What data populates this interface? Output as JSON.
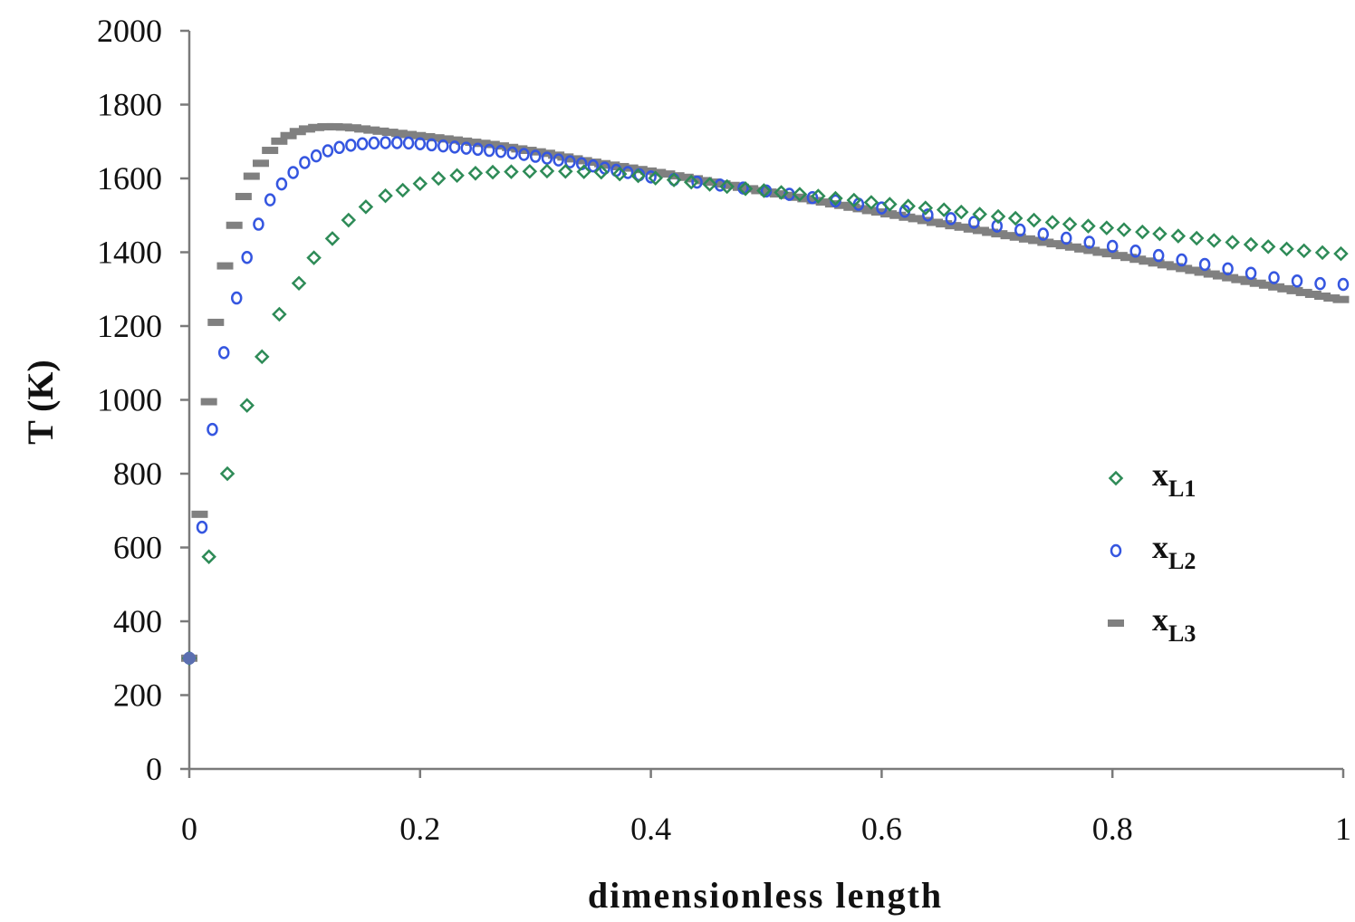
{
  "chart_data": {
    "type": "scatter",
    "xlabel": "dimensionless length",
    "ylabel": "T (K)",
    "xlim": [
      0,
      1
    ],
    "ylim": [
      0,
      2000
    ],
    "x_ticks": [
      "0",
      "0.2",
      "0.4",
      "0.6",
      "0.8",
      "1"
    ],
    "y_ticks": [
      "0",
      "200",
      "400",
      "600",
      "800",
      "1000",
      "1200",
      "1400",
      "1600",
      "1800",
      "2000"
    ],
    "grid": false,
    "legend_position": "right",
    "series": [
      {
        "name": "x",
        "subscript": "L1",
        "marker": "diamond",
        "color": "#2e8b57",
        "points": [
          [
            0,
            300
          ],
          [
            0.017,
            575
          ],
          [
            0.033,
            800
          ],
          [
            0.05,
            985
          ],
          [
            0.063,
            1117
          ],
          [
            0.078,
            1232
          ],
          [
            0.095,
            1316
          ],
          [
            0.108,
            1385
          ],
          [
            0.124,
            1437
          ],
          [
            0.138,
            1487
          ],
          [
            0.153,
            1523
          ],
          [
            0.17,
            1553
          ],
          [
            0.185,
            1568
          ],
          [
            0.2,
            1586
          ],
          [
            0.216,
            1600
          ],
          [
            0.232,
            1608
          ],
          [
            0.248,
            1614
          ],
          [
            0.263,
            1617
          ],
          [
            0.279,
            1618
          ],
          [
            0.295,
            1619
          ],
          [
            0.31,
            1620
          ],
          [
            0.326,
            1619
          ],
          [
            0.342,
            1618
          ],
          [
            0.357,
            1617
          ],
          [
            0.373,
            1612
          ],
          [
            0.389,
            1607
          ],
          [
            0.404,
            1601
          ],
          [
            0.42,
            1596
          ],
          [
            0.435,
            1590
          ],
          [
            0.451,
            1584
          ],
          [
            0.466,
            1578
          ],
          [
            0.482,
            1572
          ],
          [
            0.498,
            1567
          ],
          [
            0.513,
            1562
          ],
          [
            0.529,
            1557
          ],
          [
            0.545,
            1552
          ],
          [
            0.56,
            1546
          ],
          [
            0.576,
            1541
          ],
          [
            0.591,
            1535
          ],
          [
            0.607,
            1530
          ],
          [
            0.623,
            1525
          ],
          [
            0.638,
            1520
          ],
          [
            0.654,
            1515
          ],
          [
            0.669,
            1509
          ],
          [
            0.685,
            1503
          ],
          [
            0.701,
            1497
          ],
          [
            0.716,
            1492
          ],
          [
            0.732,
            1487
          ],
          [
            0.748,
            1481
          ],
          [
            0.763,
            1476
          ],
          [
            0.779,
            1471
          ],
          [
            0.795,
            1466
          ],
          [
            0.81,
            1461
          ],
          [
            0.826,
            1455
          ],
          [
            0.841,
            1450
          ],
          [
            0.857,
            1444
          ],
          [
            0.873,
            1438
          ],
          [
            0.888,
            1432
          ],
          [
            0.904,
            1427
          ],
          [
            0.92,
            1421
          ],
          [
            0.935,
            1415
          ],
          [
            0.951,
            1409
          ],
          [
            0.966,
            1404
          ],
          [
            0.982,
            1399
          ],
          [
            0.998,
            1396
          ]
        ]
      },
      {
        "name": "x",
        "subscript": "L2",
        "marker": "circle",
        "color": "#3556e0",
        "points": [
          [
            0,
            300
          ],
          [
            0.011,
            655
          ],
          [
            0.02,
            920
          ],
          [
            0.03,
            1128
          ],
          [
            0.041,
            1276
          ],
          [
            0.05,
            1386
          ],
          [
            0.06,
            1476
          ],
          [
            0.07,
            1542
          ],
          [
            0.08,
            1585
          ],
          [
            0.09,
            1616
          ],
          [
            0.1,
            1643
          ],
          [
            0.11,
            1661
          ],
          [
            0.12,
            1675
          ],
          [
            0.13,
            1684
          ],
          [
            0.14,
            1690
          ],
          [
            0.15,
            1694
          ],
          [
            0.16,
            1696
          ],
          [
            0.17,
            1697
          ],
          [
            0.18,
            1697
          ],
          [
            0.19,
            1696
          ],
          [
            0.2,
            1694
          ],
          [
            0.21,
            1691
          ],
          [
            0.22,
            1688
          ],
          [
            0.23,
            1685
          ],
          [
            0.24,
            1682
          ],
          [
            0.25,
            1679
          ],
          [
            0.26,
            1676
          ],
          [
            0.27,
            1673
          ],
          [
            0.28,
            1669
          ],
          [
            0.29,
            1665
          ],
          [
            0.3,
            1660
          ],
          [
            0.31,
            1655
          ],
          [
            0.32,
            1650
          ],
          [
            0.33,
            1645
          ],
          [
            0.34,
            1640
          ],
          [
            0.35,
            1634
          ],
          [
            0.36,
            1628
          ],
          [
            0.37,
            1622
          ],
          [
            0.38,
            1616
          ],
          [
            0.39,
            1610
          ],
          [
            0.4,
            1604
          ],
          [
            0.42,
            1597
          ],
          [
            0.44,
            1590
          ],
          [
            0.46,
            1582
          ],
          [
            0.48,
            1574
          ],
          [
            0.5,
            1566
          ],
          [
            0.52,
            1557
          ],
          [
            0.54,
            1548
          ],
          [
            0.56,
            1539
          ],
          [
            0.58,
            1530
          ],
          [
            0.6,
            1520
          ],
          [
            0.62,
            1511
          ],
          [
            0.64,
            1501
          ],
          [
            0.66,
            1491
          ],
          [
            0.68,
            1481
          ],
          [
            0.7,
            1471
          ],
          [
            0.72,
            1460
          ],
          [
            0.74,
            1449
          ],
          [
            0.76,
            1438
          ],
          [
            0.78,
            1427
          ],
          [
            0.8,
            1416
          ],
          [
            0.82,
            1403
          ],
          [
            0.84,
            1391
          ],
          [
            0.86,
            1379
          ],
          [
            0.88,
            1367
          ],
          [
            0.9,
            1355
          ],
          [
            0.92,
            1343
          ],
          [
            0.94,
            1331
          ],
          [
            0.96,
            1322
          ],
          [
            0.98,
            1315
          ],
          [
            1.0,
            1313
          ]
        ]
      },
      {
        "name": "x",
        "subscript": "L3",
        "marker": "dash",
        "color": "#808080",
        "points": [
          [
            0,
            300
          ],
          [
            0.009,
            690
          ],
          [
            0.017,
            995
          ],
          [
            0.023,
            1210
          ],
          [
            0.031,
            1363
          ],
          [
            0.039,
            1473
          ],
          [
            0.047,
            1551
          ],
          [
            0.054,
            1606
          ],
          [
            0.062,
            1641
          ],
          [
            0.07,
            1676
          ],
          [
            0.078,
            1701
          ],
          [
            0.086,
            1716
          ],
          [
            0.094,
            1727
          ],
          [
            0.102,
            1734
          ],
          [
            0.11,
            1738
          ],
          [
            0.118,
            1740
          ],
          [
            0.126,
            1740
          ],
          [
            0.134,
            1739
          ],
          [
            0.142,
            1737
          ],
          [
            0.15,
            1734
          ],
          [
            0.158,
            1731
          ],
          [
            0.166,
            1728
          ],
          [
            0.174,
            1725
          ],
          [
            0.182,
            1722
          ],
          [
            0.19,
            1719
          ],
          [
            0.198,
            1716
          ],
          [
            0.206,
            1713
          ],
          [
            0.214,
            1710
          ],
          [
            0.222,
            1707
          ],
          [
            0.23,
            1704
          ],
          [
            0.238,
            1701
          ],
          [
            0.246,
            1698
          ],
          [
            0.254,
            1695
          ],
          [
            0.262,
            1692
          ],
          [
            0.27,
            1688
          ],
          [
            0.278,
            1684
          ],
          [
            0.286,
            1680
          ],
          [
            0.294,
            1676
          ],
          [
            0.302,
            1672
          ],
          [
            0.31,
            1668
          ],
          [
            0.318,
            1663
          ],
          [
            0.326,
            1658
          ],
          [
            0.334,
            1653
          ],
          [
            0.342,
            1648
          ],
          [
            0.35,
            1644
          ],
          [
            0.358,
            1640
          ],
          [
            0.366,
            1636
          ],
          [
            0.374,
            1632
          ],
          [
            0.382,
            1628
          ],
          [
            0.39,
            1624
          ],
          [
            0.398,
            1620
          ],
          [
            0.406,
            1616
          ],
          [
            0.414,
            1612
          ],
          [
            0.422,
            1607
          ],
          [
            0.43,
            1603
          ],
          [
            0.438,
            1599
          ],
          [
            0.446,
            1594
          ],
          [
            0.454,
            1590
          ],
          [
            0.462,
            1585
          ],
          [
            0.47,
            1581
          ],
          [
            0.478,
            1576
          ],
          [
            0.486,
            1572
          ],
          [
            0.494,
            1567
          ],
          [
            0.502,
            1563
          ],
          [
            0.51,
            1558
          ],
          [
            0.518,
            1554
          ],
          [
            0.526,
            1549
          ],
          [
            0.534,
            1545
          ],
          [
            0.542,
            1540
          ],
          [
            0.55,
            1536
          ],
          [
            0.558,
            1531
          ],
          [
            0.566,
            1527
          ],
          [
            0.574,
            1522
          ],
          [
            0.582,
            1518
          ],
          [
            0.59,
            1513
          ],
          [
            0.598,
            1509
          ],
          [
            0.606,
            1504
          ],
          [
            0.614,
            1500
          ],
          [
            0.622,
            1495
          ],
          [
            0.63,
            1491
          ],
          [
            0.638,
            1486
          ],
          [
            0.646,
            1481
          ],
          [
            0.654,
            1477
          ],
          [
            0.662,
            1472
          ],
          [
            0.67,
            1468
          ],
          [
            0.678,
            1463
          ],
          [
            0.686,
            1459
          ],
          [
            0.694,
            1454
          ],
          [
            0.702,
            1450
          ],
          [
            0.71,
            1445
          ],
          [
            0.718,
            1441
          ],
          [
            0.726,
            1436
          ],
          [
            0.734,
            1432
          ],
          [
            0.742,
            1427
          ],
          [
            0.75,
            1423
          ],
          [
            0.758,
            1418
          ],
          [
            0.766,
            1414
          ],
          [
            0.774,
            1409
          ],
          [
            0.782,
            1405
          ],
          [
            0.79,
            1400
          ],
          [
            0.798,
            1396
          ],
          [
            0.806,
            1391
          ],
          [
            0.814,
            1386
          ],
          [
            0.822,
            1381
          ],
          [
            0.83,
            1376
          ],
          [
            0.838,
            1371
          ],
          [
            0.846,
            1366
          ],
          [
            0.854,
            1361
          ],
          [
            0.862,
            1356
          ],
          [
            0.87,
            1351
          ],
          [
            0.878,
            1346
          ],
          [
            0.886,
            1341
          ],
          [
            0.894,
            1336
          ],
          [
            0.902,
            1331
          ],
          [
            0.91,
            1326
          ],
          [
            0.918,
            1321
          ],
          [
            0.926,
            1316
          ],
          [
            0.934,
            1311
          ],
          [
            0.942,
            1306
          ],
          [
            0.95,
            1301
          ],
          [
            0.958,
            1296
          ],
          [
            0.966,
            1291
          ],
          [
            0.974,
            1286
          ],
          [
            0.982,
            1281
          ],
          [
            0.99,
            1276
          ],
          [
            0.998,
            1272
          ]
        ]
      }
    ]
  }
}
